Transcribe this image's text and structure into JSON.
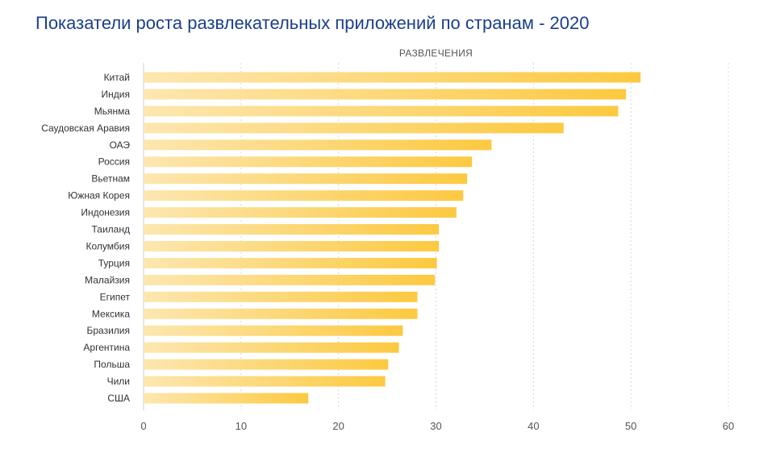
{
  "chart_data": {
    "type": "bar",
    "orientation": "horizontal",
    "title": "Показатели роста развлекательных приложений по странам - 2020",
    "series_name": "РАЗВЛЕЧЕНИЯ",
    "categories": [
      "Китай",
      "Индия",
      "Мьянма",
      "Саудовская Аравия",
      "ОАЭ",
      "Россия",
      "Вьетнам",
      "Южная Корея",
      "Индонезия",
      "Таиланд",
      "Колумбия",
      "Турция",
      "Малайзия",
      "Египет",
      "Мексика",
      "Бразилия",
      "Аргентина",
      "Польша",
      "Чили",
      "США"
    ],
    "values": [
      51,
      49.5,
      48.7,
      43.1,
      35.7,
      33.7,
      33.2,
      32.8,
      32.1,
      30.3,
      30.3,
      30.1,
      29.9,
      28.1,
      28.1,
      26.6,
      26.2,
      25.1,
      24.8,
      16.9
    ],
    "xlim": [
      0,
      60
    ],
    "xticks": [
      0,
      10,
      20,
      30,
      40,
      50,
      60
    ],
    "xlabel": "",
    "ylabel": "",
    "grid": true,
    "colors": {
      "bar_start": "#fde7b0",
      "bar_end": "#fcc940",
      "title": "#1c3f8c"
    }
  }
}
